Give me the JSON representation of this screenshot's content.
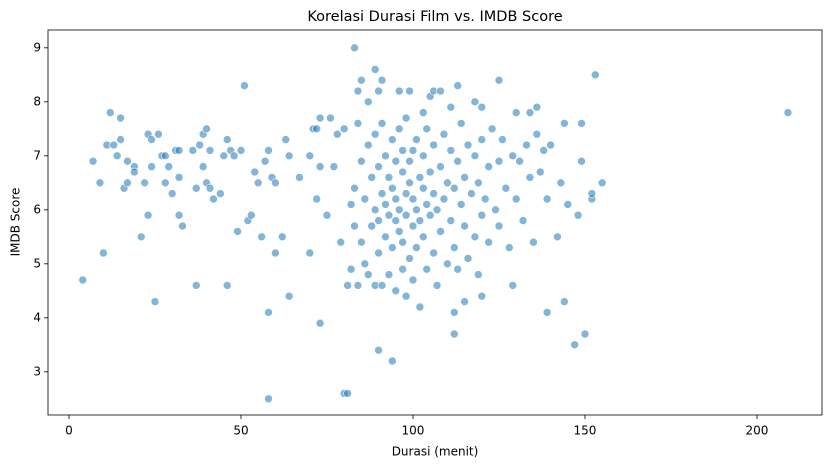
{
  "chart_data": {
    "type": "scatter",
    "title": "Korelasi Durasi Film vs. IMDB Score",
    "x_label": "Durasi (menit)",
    "y_label": "IMDB Score",
    "color": "#1f77b4",
    "x": [
      4,
      7,
      9,
      10,
      11,
      12,
      13,
      14,
      15,
      15,
      16,
      17,
      17,
      19,
      19,
      21,
      22,
      23,
      23,
      24,
      24,
      25,
      26,
      27,
      28,
      28,
      29,
      30,
      31,
      32,
      32,
      32,
      33,
      36,
      37,
      37,
      38,
      39,
      39,
      40,
      40,
      41,
      41,
      42,
      44,
      45,
      46,
      46,
      47,
      48,
      49,
      50,
      51,
      52,
      53,
      54,
      55,
      56,
      57,
      58,
      58,
      58,
      59,
      60,
      60,
      62,
      63,
      64,
      64,
      67,
      70,
      70,
      71,
      72,
      72,
      73,
      73,
      73,
      75,
      76,
      77,
      78,
      79,
      80,
      80,
      81,
      81,
      82,
      83,
      84,
      85,
      87,
      89,
      90,
      90,
      91,
      94,
      96,
      99,
      100,
      103,
      105,
      106,
      108,
      111,
      112,
      112,
      113,
      115,
      118,
      120,
      120,
      125,
      129,
      130,
      134,
      136,
      139,
      139,
      142,
      144,
      144,
      147,
      148,
      149,
      149,
      150,
      152,
      152,
      153,
      155,
      209,
      82,
      83,
      83,
      84,
      84,
      85,
      85,
      86,
      86,
      87,
      87,
      88,
      88,
      89,
      89,
      89,
      90,
      90,
      90,
      91,
      91,
      91,
      92,
      92,
      92,
      93,
      93,
      93,
      94,
      94,
      94,
      95,
      95,
      95,
      95,
      96,
      96,
      96,
      97,
      97,
      97,
      97,
      98,
      98,
      98,
      98,
      99,
      99,
      99,
      100,
      100,
      100,
      101,
      101,
      101,
      102,
      102,
      102,
      103,
      103,
      103,
      104,
      104,
      104,
      105,
      105,
      106,
      106,
      106,
      107,
      107,
      108,
      108,
      109,
      109,
      110,
      110,
      111,
      111,
      112,
      112,
      113,
      113,
      114,
      114,
      115,
      115,
      116,
      116,
      117,
      118,
      118,
      119,
      119,
      120,
      120,
      121,
      122,
      122,
      123,
      124,
      125,
      125,
      126,
      127,
      128,
      129,
      130,
      131,
      132,
      133,
      134,
      135,
      136,
      137,
      138,
      140,
      143,
      145
    ],
    "values": [
      4.7,
      6.9,
      6.5,
      5.2,
      7.2,
      7.8,
      7.2,
      7.0,
      7.7,
      7.3,
      6.4,
      6.5,
      6.9,
      6.8,
      6.7,
      5.5,
      6.5,
      7.4,
      5.9,
      6.8,
      7.3,
      4.3,
      7.4,
      7.0,
      7.0,
      6.5,
      6.8,
      6.3,
      7.1,
      7.1,
      6.6,
      5.9,
      5.7,
      7.1,
      4.6,
      6.4,
      7.2,
      6.8,
      7.4,
      7.5,
      6.5,
      6.4,
      7.1,
      6.2,
      6.3,
      7.0,
      4.6,
      7.3,
      7.1,
      7.0,
      5.6,
      7.1,
      8.3,
      5.8,
      5.9,
      6.7,
      6.5,
      5.5,
      6.9,
      7.1,
      4.1,
      2.5,
      6.6,
      6.5,
      5.2,
      5.5,
      7.3,
      4.4,
      7.0,
      6.6,
      5.2,
      7.0,
      7.5,
      7.5,
      6.2,
      3.9,
      6.8,
      7.7,
      5.9,
      7.7,
      6.8,
      7.4,
      5.4,
      7.5,
      2.6,
      2.6,
      4.6,
      4.9,
      9.0,
      8.2,
      8.4,
      8.0,
      8.6,
      3.4,
      8.2,
      8.4,
      3.2,
      8.2,
      8.2,
      7.1,
      7.8,
      8.1,
      8.2,
      8.2,
      7.9,
      3.7,
      4.1,
      8.3,
      4.3,
      8.0,
      7.9,
      4.4,
      8.4,
      4.6,
      7.8,
      7.8,
      7.9,
      4.1,
      6.2,
      5.5,
      4.3,
      7.6,
      3.5,
      5.9,
      6.9,
      7.6,
      3.7,
      6.2,
      6.3,
      8.5,
      6.5,
      7.8,
      6.1,
      6.4,
      5.7,
      7.6,
      4.6,
      5.4,
      6.9,
      6.2,
      5.0,
      7.2,
      4.8,
      5.7,
      6.6,
      7.4,
      4.6,
      6.0,
      5.2,
      6.8,
      5.8,
      7.6,
      4.6,
      6.3,
      5.5,
      7.0,
      6.1,
      5.9,
      4.8,
      6.6,
      7.3,
      5.3,
      6.4,
      5.8,
      6.9,
      4.5,
      6.2,
      7.5,
      5.6,
      6.0,
      6.7,
      4.9,
      5.4,
      7.1,
      6.3,
      5.9,
      4.4,
      7.7,
      6.5,
      5.1,
      6.9,
      5.7,
      6.2,
      4.7,
      7.3,
      6.0,
      5.3,
      6.6,
      5.8,
      4.2,
      7.0,
      6.4,
      5.5,
      6.1,
      7.5,
      4.9,
      5.9,
      6.7,
      5.2,
      7.2,
      6.3,
      4.6,
      6.0,
      6.8,
      5.6,
      7.4,
      6.2,
      5.0,
      6.5,
      7.1,
      5.8,
      6.4,
      5.3,
      6.9,
      4.9,
      6.1,
      7.6,
      5.7,
      6.6,
      5.1,
      7.2,
      6.3,
      5.5,
      7.0,
      4.8,
      6.5,
      5.9,
      7.3,
      6.2,
      5.4,
      6.8,
      7.5,
      6.0,
      5.7,
      6.9,
      7.3,
      6.4,
      5.3,
      7.0,
      6.2,
      6.9,
      5.8,
      7.2,
      6.6,
      5.4,
      7.4,
      6.7,
      7.1,
      7.2,
      6.5,
      6.1
    ],
    "xlim": [
      -6.1,
      218.9
    ],
    "ylim": [
      2.2,
      9.33
    ],
    "xticks": [
      0,
      50,
      100,
      150,
      200
    ],
    "yticks": [
      3,
      4,
      5,
      6,
      7,
      8,
      9
    ],
    "grid": false
  }
}
